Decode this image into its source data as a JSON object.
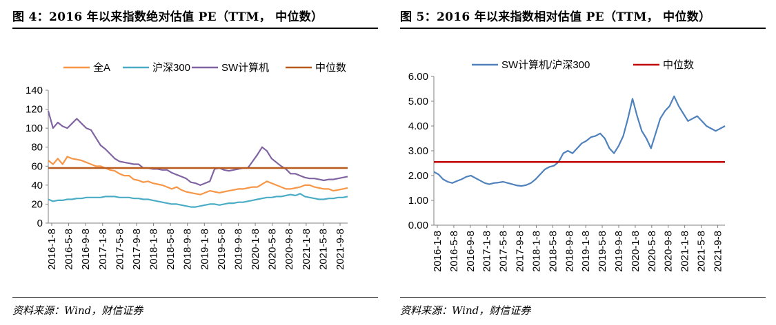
{
  "left": {
    "title": "图 4：2016 年以来指数绝对估值 PE（TTM， 中位数）",
    "source": "资料来源：Wind，财信证券"
  },
  "right": {
    "title": "图 5：2016 年以来指数相对估值 PE（TTM， 中位数）",
    "source": "资料来源：Wind，财信证券"
  },
  "chart_data": [
    {
      "type": "line",
      "title": "",
      "xlabel": "",
      "ylabel": "",
      "x_ticks": [
        "2016-1-8",
        "2016-5-8",
        "2016-9-8",
        "2017-1-8",
        "2017-5-8",
        "2017-9-8",
        "2018-1-8",
        "2018-5-8",
        "2018-9-8",
        "2019-1-8",
        "2019-5-8",
        "2019-9-8",
        "2020-1-8",
        "2020-5-8",
        "2020-9-8",
        "2021-1-8",
        "2021-5-8",
        "2021-9-8"
      ],
      "y_ticks": [
        "0",
        "20",
        "40",
        "60",
        "80",
        "100",
        "120",
        "140"
      ],
      "ylim": [
        0,
        140
      ],
      "grid": false,
      "legend": "top",
      "series": [
        {
          "name": "全A",
          "color": "#F79646",
          "values": [
            66,
            62,
            68,
            62,
            70,
            68,
            67,
            66,
            64,
            62,
            60,
            60,
            58,
            56,
            55,
            52,
            50,
            50,
            46,
            45,
            43,
            44,
            42,
            41,
            40,
            38,
            36,
            38,
            35,
            33,
            32,
            31,
            30,
            32,
            34,
            33,
            32,
            33,
            34,
            35,
            36,
            36,
            37,
            38,
            38,
            41,
            44,
            42,
            40,
            38,
            36,
            36,
            37,
            38,
            40,
            40,
            38,
            37,
            36,
            36,
            34,
            35,
            36,
            37
          ]
        },
        {
          "name": "沪深300",
          "color": "#4BACC6",
          "values": [
            25,
            23,
            24,
            24,
            25,
            25,
            26,
            26,
            27,
            27,
            27,
            27,
            28,
            28,
            28,
            27,
            27,
            27,
            26,
            26,
            25,
            25,
            24,
            23,
            22,
            21,
            20,
            20,
            19,
            18,
            17,
            17,
            18,
            19,
            20,
            20,
            19,
            20,
            21,
            21,
            22,
            22,
            23,
            24,
            25,
            26,
            27,
            27,
            28,
            28,
            29,
            30,
            29,
            31,
            28,
            27,
            26,
            25,
            25,
            26,
            26,
            27,
            27,
            28
          ]
        },
        {
          "name": "SW计算机",
          "color": "#8064A2",
          "values": [
            118,
            100,
            106,
            102,
            100,
            105,
            110,
            105,
            100,
            98,
            90,
            82,
            78,
            73,
            68,
            65,
            64,
            63,
            62,
            62,
            58,
            58,
            57,
            57,
            56,
            56,
            53,
            51,
            49,
            47,
            43,
            42,
            40,
            42,
            44,
            57,
            58,
            56,
            55,
            56,
            57,
            58,
            58,
            65,
            72,
            80,
            76,
            68,
            64,
            60,
            57,
            52,
            52,
            50,
            48,
            47,
            47,
            46,
            45,
            46,
            46,
            47,
            48,
            49
          ]
        },
        {
          "name": "中位数",
          "color": "#C0504D_dark",
          "display_color": "#B85A1C",
          "values": [
            58,
            58,
            58,
            58,
            58,
            58,
            58,
            58,
            58,
            58,
            58,
            58,
            58,
            58,
            58,
            58,
            58,
            58,
            58,
            58,
            58,
            58,
            58,
            58,
            58,
            58,
            58,
            58,
            58,
            58,
            58,
            58,
            58,
            58,
            58,
            58,
            58,
            58,
            58,
            58,
            58,
            58,
            58,
            58,
            58,
            58,
            58,
            58,
            58,
            58,
            58,
            58,
            58,
            58,
            58,
            58,
            58,
            58,
            58,
            58,
            58,
            58,
            58,
            58
          ]
        }
      ]
    },
    {
      "type": "line",
      "title": "",
      "xlabel": "",
      "ylabel": "",
      "x_ticks": [
        "2016-1-8",
        "2016-5-8",
        "2016-9-8",
        "2017-1-8",
        "2017-5-8",
        "2017-9-8",
        "2018-1-8",
        "2018-5-8",
        "2018-9-8",
        "2019-1-8",
        "2019-5-8",
        "2019-9-8",
        "2020-1-8",
        "2020-5-8",
        "2020-9-8",
        "2021-1-8",
        "2021-5-8",
        "2021-9-8"
      ],
      "y_ticks": [
        "0.00",
        "1.00",
        "2.00",
        "3.00",
        "4.00",
        "5.00",
        "6.00"
      ],
      "ylim": [
        0,
        6
      ],
      "grid": false,
      "legend": "top",
      "series": [
        {
          "name": "SW计算机/沪深300",
          "color": "#4F81BD",
          "values": [
            2.15,
            2.05,
            1.85,
            1.75,
            1.7,
            1.78,
            1.85,
            1.95,
            2.0,
            1.9,
            1.8,
            1.7,
            1.65,
            1.7,
            1.72,
            1.75,
            1.7,
            1.65,
            1.6,
            1.58,
            1.62,
            1.7,
            1.85,
            2.05,
            2.25,
            2.35,
            2.4,
            2.55,
            2.9,
            3.0,
            2.9,
            3.1,
            3.3,
            3.4,
            3.55,
            3.6,
            3.7,
            3.5,
            3.1,
            2.9,
            3.2,
            3.6,
            4.3,
            5.1,
            4.4,
            3.8,
            3.5,
            3.1,
            3.7,
            4.3,
            4.6,
            4.8,
            5.2,
            4.8,
            4.5,
            4.2,
            4.3,
            4.4,
            4.2,
            4.0,
            3.9,
            3.8,
            3.9,
            4.0
          ]
        },
        {
          "name": "中位数",
          "color": "#C00000",
          "values": [
            2.55,
            2.55,
            2.55,
            2.55,
            2.55,
            2.55,
            2.55,
            2.55,
            2.55,
            2.55,
            2.55,
            2.55,
            2.55,
            2.55,
            2.55,
            2.55,
            2.55,
            2.55,
            2.55,
            2.55,
            2.55,
            2.55,
            2.55,
            2.55,
            2.55,
            2.55,
            2.55,
            2.55,
            2.55,
            2.55,
            2.55,
            2.55,
            2.55,
            2.55,
            2.55,
            2.55,
            2.55,
            2.55,
            2.55,
            2.55,
            2.55,
            2.55,
            2.55,
            2.55,
            2.55,
            2.55,
            2.55,
            2.55,
            2.55,
            2.55,
            2.55,
            2.55,
            2.55,
            2.55,
            2.55,
            2.55,
            2.55,
            2.55,
            2.55,
            2.55,
            2.55,
            2.55,
            2.55,
            2.55
          ]
        }
      ]
    }
  ]
}
